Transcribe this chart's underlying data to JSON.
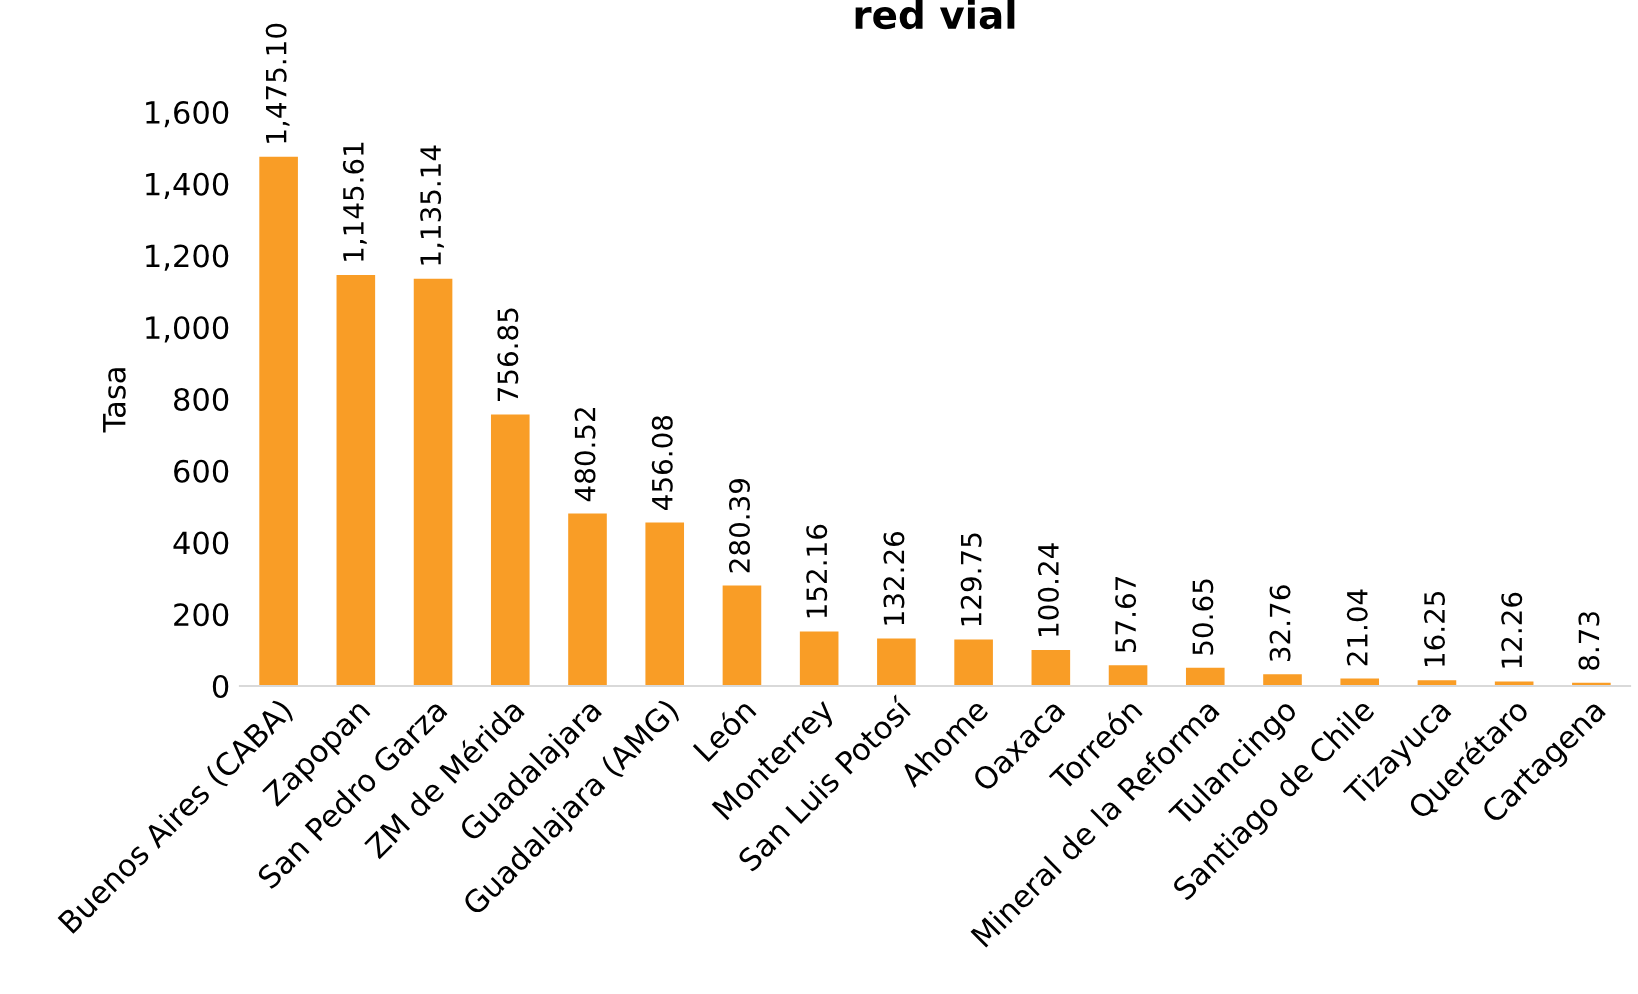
{
  "chart_data": {
    "type": "bar",
    "title": "red vial",
    "ylabel": "Tasa",
    "categories": [
      "Buenos Aires (CABA)",
      "Zapopan",
      "San Pedro Garza",
      "ZM de Mérida",
      "Guadalajara",
      "Guadalajara (AMG)",
      "León",
      "Monterrey",
      "San Luis Potosí",
      "Ahome",
      "Oaxaca",
      "Torreón",
      "Mineral de la Reforma",
      "Tulancingo",
      "Santiago de Chile",
      "Tizayuca",
      "Querétaro",
      "Cartagena"
    ],
    "values": [
      1475.1,
      1145.61,
      1135.14,
      756.85,
      480.52,
      456.08,
      280.39,
      152.16,
      132.26,
      129.75,
      100.24,
      57.67,
      50.65,
      32.76,
      21.04,
      16.25,
      12.26,
      8.73
    ],
    "value_labels": [
      "1,475.10",
      "1,145.61",
      "1,135.14",
      "756.85",
      "480.52",
      "456.08",
      "280.39",
      "152.16",
      "132.26",
      "129.75",
      "100.24",
      "57.67",
      "50.65",
      "32.76",
      "21.04",
      "16.25",
      "12.26",
      "8.73"
    ],
    "color": "#f99d26",
    "ylim": [
      0,
      1600
    ],
    "yticks": [
      {
        "value": 0,
        "label": "0"
      },
      {
        "value": 200,
        "label": "200"
      },
      {
        "value": 400,
        "label": "400"
      },
      {
        "value": 600,
        "label": "600"
      },
      {
        "value": 800,
        "label": "800"
      },
      {
        "value": 1000,
        "label": "1,000"
      },
      {
        "value": 1200,
        "label": "1,200"
      },
      {
        "value": 1400,
        "label": "1,400"
      },
      {
        "value": 1600,
        "label": "1,600"
      }
    ],
    "grid": false,
    "legend": false
  }
}
